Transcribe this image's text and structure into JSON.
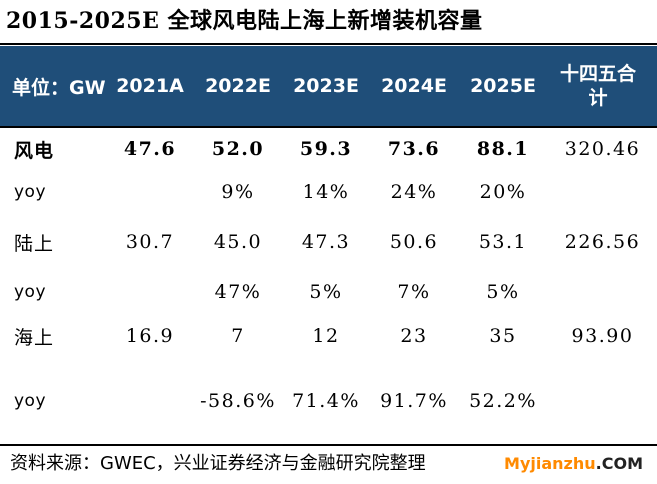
{
  "title": "2015-2025E 全球风电陆上海上新增装机容量",
  "table": {
    "header": [
      "单位：GW",
      "2021A",
      "2022E",
      "2023E",
      "2024E",
      "2025E",
      "十四五合计"
    ],
    "rows": [
      {
        "label": "风电",
        "values": [
          "47.6",
          "52.0",
          "59.3",
          "73.6",
          "88.1",
          "320.46"
        ]
      },
      {
        "label": "yoy",
        "values": [
          "",
          "9%",
          "14%",
          "24%",
          "20%",
          ""
        ]
      },
      {
        "label": "陆上",
        "values": [
          "30.7",
          "45.0",
          "47.3",
          "50.6",
          "53.1",
          "226.56"
        ]
      },
      {
        "label": "yoy",
        "values": [
          "",
          "47%",
          "5%",
          "7%",
          "5%",
          ""
        ]
      },
      {
        "label": "海上",
        "values": [
          "16.9",
          "7",
          "12",
          "23",
          "35",
          "93.90"
        ]
      },
      {
        "label": "yoy",
        "values": [
          "",
          "-58.6%",
          "71.4%",
          "91.7%",
          "52.2%",
          ""
        ]
      }
    ]
  },
  "source": "资料来源：GWEC，兴业证券经济与金融研究院整理",
  "watermark": {
    "main": "Myjianzhu",
    "suffix": ".COM"
  }
}
